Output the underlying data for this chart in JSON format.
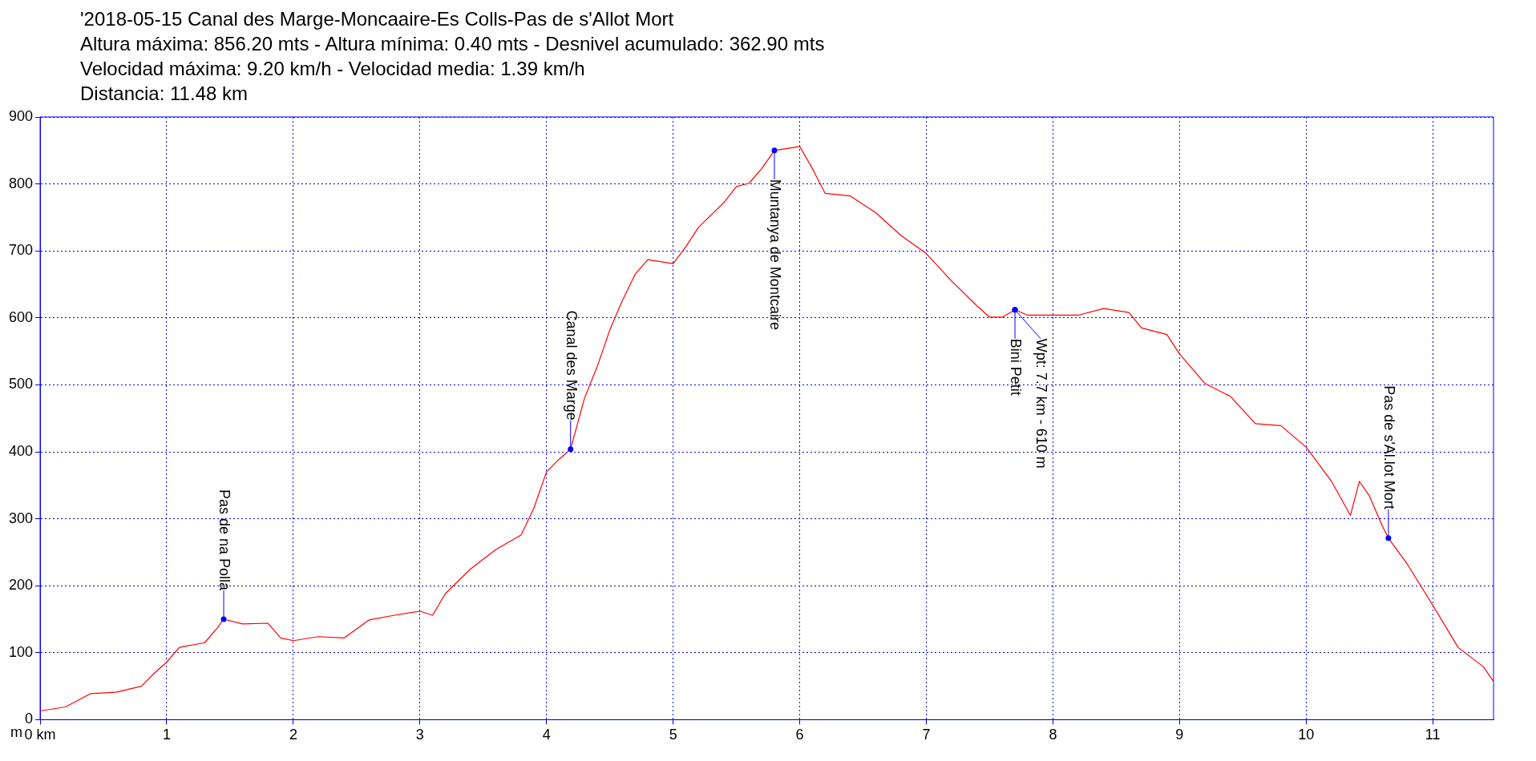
{
  "chart_data": {
    "type": "line",
    "title": "'2018-05-15 Canal des Marge-Moncaaire-Es Colls-Pas de s'Allot Mort",
    "subtitle": "Altura máxima: 856.20 mts - Altura mínima: 0.40 mts - Desnivel acumulado: 362.90 mts\nVelocidad máxima: 9.20 km/h - Velocidad media: 1.39 km/h\nDistancia: 11.48 km",
    "ylabel": "m",
    "x": [
      0,
      0.2,
      0.4,
      0.6,
      0.8,
      0.9,
      1.0,
      1.1,
      1.3,
      1.4,
      1.45,
      1.6,
      1.8,
      1.9,
      2.0,
      2.2,
      2.4,
      2.6,
      2.8,
      3.0,
      3.1,
      3.2,
      3.4,
      3.6,
      3.8,
      3.9,
      4.0,
      4.1,
      4.19,
      4.3,
      4.4,
      4.5,
      4.6,
      4.7,
      4.8,
      5.0,
      5.1,
      5.2,
      5.4,
      5.5,
      5.6,
      5.7,
      5.8,
      5.9,
      6.0,
      6.1,
      6.2,
      6.4,
      6.6,
      6.8,
      7.0,
      7.2,
      7.4,
      7.5,
      7.6,
      7.7,
      7.8,
      8.0,
      8.2,
      8.4,
      8.6,
      8.7,
      8.9,
      9.0,
      9.2,
      9.4,
      9.6,
      9.8,
      10.0,
      10.2,
      10.35,
      10.42,
      10.5,
      10.6,
      10.65,
      10.8,
      11.0,
      11.2,
      11.4,
      11.48
    ],
    "series": [
      {
        "color": "#ff0000",
        "values": [
          13,
          19,
          39,
          41,
          50,
          69,
          86,
          108,
          115,
          137,
          150,
          143,
          144,
          122,
          118,
          124,
          122,
          149,
          156,
          162,
          156,
          188,
          225,
          254,
          276,
          316,
          370,
          389,
          404,
          480,
          527,
          582,
          626,
          665,
          687,
          681,
          706,
          735,
          772,
          796,
          801,
          823,
          850,
          853,
          856,
          823,
          786,
          782,
          757,
          723,
          696,
          655,
          618,
          601,
          601,
          612,
          604,
          604,
          604,
          614,
          608,
          585,
          575,
          546,
          502,
          483,
          442,
          439,
          407,
          356,
          305,
          356,
          334,
          290,
          271,
          232,
          171,
          108,
          79,
          57
        ]
      }
    ],
    "xlim": [
      0,
      11.48
    ],
    "xticks": [
      {
        "value": 0,
        "label": "0 km"
      },
      1,
      2,
      3,
      4,
      5,
      6,
      7,
      8,
      9,
      10,
      11
    ],
    "ylim": [
      0,
      900
    ],
    "yticks": [
      0,
      100,
      200,
      300,
      400,
      500,
      600,
      700,
      800,
      900
    ],
    "grid": true,
    "annotations": [
      {
        "text": "Pas de na Polla",
        "x": 1.45,
        "y": 150
      },
      {
        "text": "Canal des Marge",
        "x": 4.19,
        "y": 404
      },
      {
        "text": "Muntanya de Montcaire",
        "x": 5.8,
        "y": 850
      },
      {
        "text": "Bini Petit",
        "x": 7.7,
        "y": 612
      },
      {
        "text": "Wpt: 7.7 km - 610 m",
        "x": 7.7,
        "y": 612
      },
      {
        "text": "Pas de s'Al.lot Mort",
        "x": 10.65,
        "y": 271
      }
    ]
  }
}
